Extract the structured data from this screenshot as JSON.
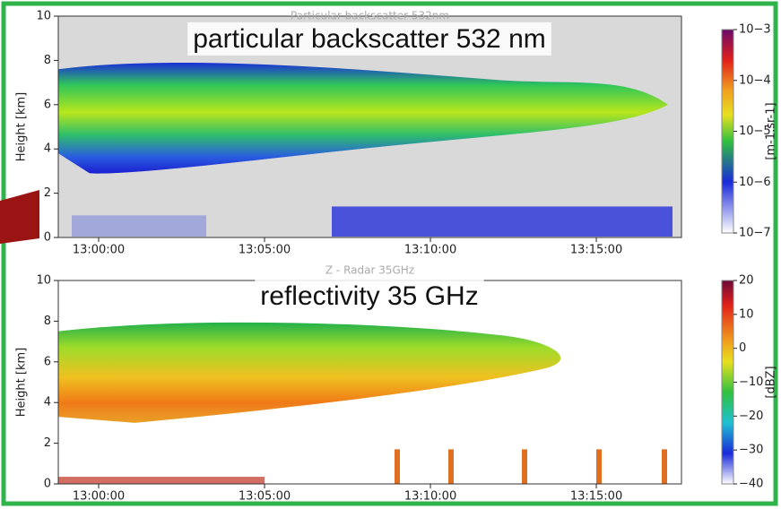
{
  "chart_data": [
    {
      "type": "heatmap",
      "title": "Particular backscatter 532nm",
      "annotation": "particular backscatter 532 nm",
      "ylabel": "Height [km]",
      "ylim": [
        0,
        10
      ],
      "yticks": [
        0,
        2,
        4,
        6,
        8,
        10
      ],
      "xlim": [
        "12:58:47",
        "13:17:34"
      ],
      "xticks": [
        "13:00:00",
        "13:05:00",
        "13:10:00",
        "13:15:00"
      ],
      "background": "#d9d9d9",
      "colorbar": {
        "label": "[m-1.sr-1]",
        "log": true,
        "lim": [
          1e-07,
          0.001
        ],
        "ticks": [
          {
            "value": 0.001,
            "label": "10−3"
          },
          {
            "value": 0.0001,
            "label": "10−4"
          },
          {
            "value": 1e-05,
            "label": "10−5"
          },
          {
            "value": 1e-06,
            "label": "10−6"
          },
          {
            "value": 1e-07,
            "label": "10−7"
          }
        ]
      }
    },
    {
      "type": "heatmap",
      "title": "Z - Radar 35GHz",
      "annotation": "reflectivity 35 GHz",
      "ylabel": "Height [km]",
      "ylim": [
        0,
        10
      ],
      "yticks": [
        0,
        2,
        4,
        6,
        8,
        10
      ],
      "xlim": [
        "12:58:47",
        "13:17:34"
      ],
      "xticks": [
        "13:00:00",
        "13:05:00",
        "13:10:00",
        "13:15:00"
      ],
      "background": "#ffffff",
      "colorbar": {
        "label": "[dBZ]",
        "log": false,
        "lim": [
          -40,
          20
        ],
        "ticks": [
          20,
          10,
          0,
          {
            "value": -10,
            "label": "−10"
          },
          {
            "value": -20,
            "label": "−20"
          },
          {
            "value": -30,
            "label": "−30"
          },
          {
            "value": -40,
            "label": "−40"
          }
        ]
      }
    }
  ]
}
